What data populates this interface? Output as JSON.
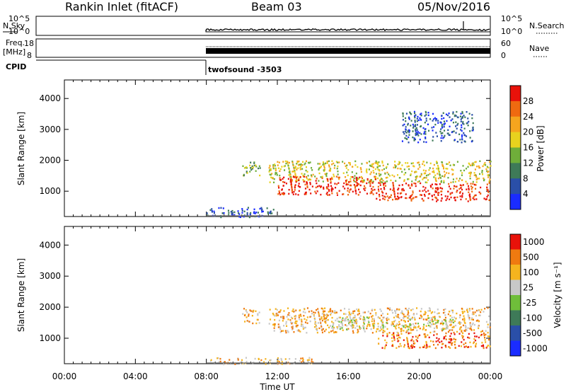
{
  "header": {
    "station": "Rankin Inlet (fitACF)",
    "beam": "Beam 03",
    "date": "05/Nov/2016"
  },
  "panels": {
    "nsky_label": "N.Sky",
    "nsearch_label": "N.Search",
    "freq_label_1": "Freq.",
    "freq_label_2": "[MHz]",
    "nave_label": "Nave",
    "cpid_label": "CPID",
    "cpid_value": "twofsound -3503",
    "noise_ticks_left": [
      "10^5",
      "10^0"
    ],
    "noise_ticks_right": [
      "10^5",
      "10^0"
    ],
    "freq_ticks": [
      "18",
      "8"
    ],
    "nave_ticks": [
      "60",
      "0"
    ]
  },
  "chart_data": [
    {
      "type": "heatmap",
      "name": "power",
      "ylabel": "Slant Range [km]",
      "xlabel": "Time UT",
      "xlim_hours": [
        0,
        24
      ],
      "ylim": [
        180,
        4600
      ],
      "x_ticks": [
        "00:00",
        "04:00",
        "08:00",
        "12:00",
        "16:00",
        "20:00",
        "00:00"
      ],
      "y_ticks": [
        1000,
        2000,
        3000,
        4000
      ],
      "colorbar": {
        "label": "Power [dB]",
        "ticks": [
          "4",
          "8",
          "12",
          "16",
          "20",
          "24",
          "28"
        ],
        "colors": [
          "#1a2cff",
          "#2a4fa8",
          "#3e7a58",
          "#6fae3a",
          "#e8d21e",
          "#f5a51e",
          "#ef6a10",
          "#e8120a"
        ]
      },
      "data_start_hour": 8.0,
      "regions": [
        {
          "t0": 10.0,
          "t1": 11.0,
          "r0": 1500,
          "r1": 2000,
          "level": 3
        },
        {
          "t0": 11.5,
          "t1": 24.0,
          "r0": 1300,
          "r1": 2000,
          "level": 4
        },
        {
          "t0": 12.0,
          "t1": 17.5,
          "r0": 900,
          "r1": 1500,
          "level": 7
        },
        {
          "t0": 17.5,
          "t1": 24.0,
          "r0": 700,
          "r1": 1300,
          "level": 7
        },
        {
          "t0": 19.0,
          "t1": 23.0,
          "r0": 2600,
          "r1": 3600,
          "level": 1
        },
        {
          "t0": 8.0,
          "t1": 12.0,
          "r0": 180,
          "r1": 500,
          "level": 1
        }
      ]
    },
    {
      "type": "heatmap",
      "name": "velocity",
      "ylabel": "Slant Range [km]",
      "xlabel": "Time UT",
      "xlim_hours": [
        0,
        24
      ],
      "ylim": [
        180,
        4600
      ],
      "x_ticks": [
        "00:00",
        "04:00",
        "08:00",
        "12:00",
        "16:00",
        "20:00",
        "00:00"
      ],
      "y_ticks": [
        1000,
        2000,
        3000,
        4000
      ],
      "colorbar": {
        "label": "Velocity [m s⁻¹]",
        "ticks": [
          "1000",
          "500",
          "100",
          "25",
          "-25",
          "-100",
          "-500",
          "-1000"
        ],
        "colors": [
          "#1a2cff",
          "#2a4fa8",
          "#3e7a58",
          "#6fbe3a",
          "#c8c8c8",
          "#f5b41e",
          "#ef7a10",
          "#e8120a"
        ]
      },
      "data_start_hour": 8.0,
      "regions": [
        {
          "t0": 10.0,
          "t1": 11.0,
          "r0": 1500,
          "r1": 2000,
          "level": 5
        },
        {
          "t0": 11.5,
          "t1": 24.0,
          "r0": 1200,
          "r1": 2000,
          "level": 5
        },
        {
          "t0": 15.0,
          "t1": 22.0,
          "r0": 1300,
          "r1": 1700,
          "level": 4
        },
        {
          "t0": 17.5,
          "t1": 24.0,
          "r0": 700,
          "r1": 1200,
          "level": 6
        },
        {
          "t0": 8.0,
          "t1": 14.0,
          "r0": 180,
          "r1": 400,
          "level": 5
        }
      ]
    }
  ]
}
